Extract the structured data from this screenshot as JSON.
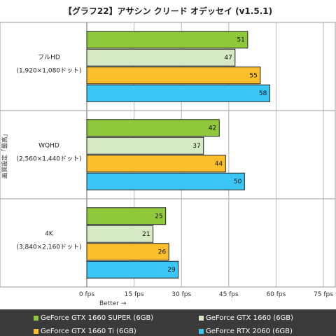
{
  "chart_data": {
    "type": "bar",
    "orientation": "horizontal",
    "title": "【グラフ22】アサシン クリード オデッセイ (v1.5.1)",
    "ylabel": "画質設定「最高」",
    "xlabel": "Better →",
    "categories": [
      "フルHD",
      "WQHD",
      "4K"
    ],
    "category_sublabels": [
      "(1,920×1,080ドット)",
      "(2,560×1,440ドット)",
      "(3,840×2,160ドット)"
    ],
    "xlim": [
      0,
      75
    ],
    "xticks": [
      0,
      15,
      30,
      45,
      60,
      75
    ],
    "xtick_labels": [
      "0 fps",
      "15 fps",
      "30 fps",
      "45 fps",
      "60 fps",
      "75 fps"
    ],
    "legend_position": "bottom",
    "grid": true,
    "series": [
      {
        "name": "GeForce GTX 1660 SUPER (6GB)",
        "color": "#90c83c",
        "values": [
          51,
          42,
          25
        ]
      },
      {
        "name": "GeForce GTX 1660 (6GB)",
        "color": "#d4e9c4",
        "values": [
          47,
          37,
          21
        ]
      },
      {
        "name": "GeForce GTX 1660 Ti (6GB)",
        "color": "#fbbf2c",
        "values": [
          55,
          44,
          26
        ]
      },
      {
        "name": "GeForce RTX 2060 (6GB)",
        "color": "#3ac6f4",
        "values": [
          58,
          50,
          29
        ]
      }
    ]
  }
}
